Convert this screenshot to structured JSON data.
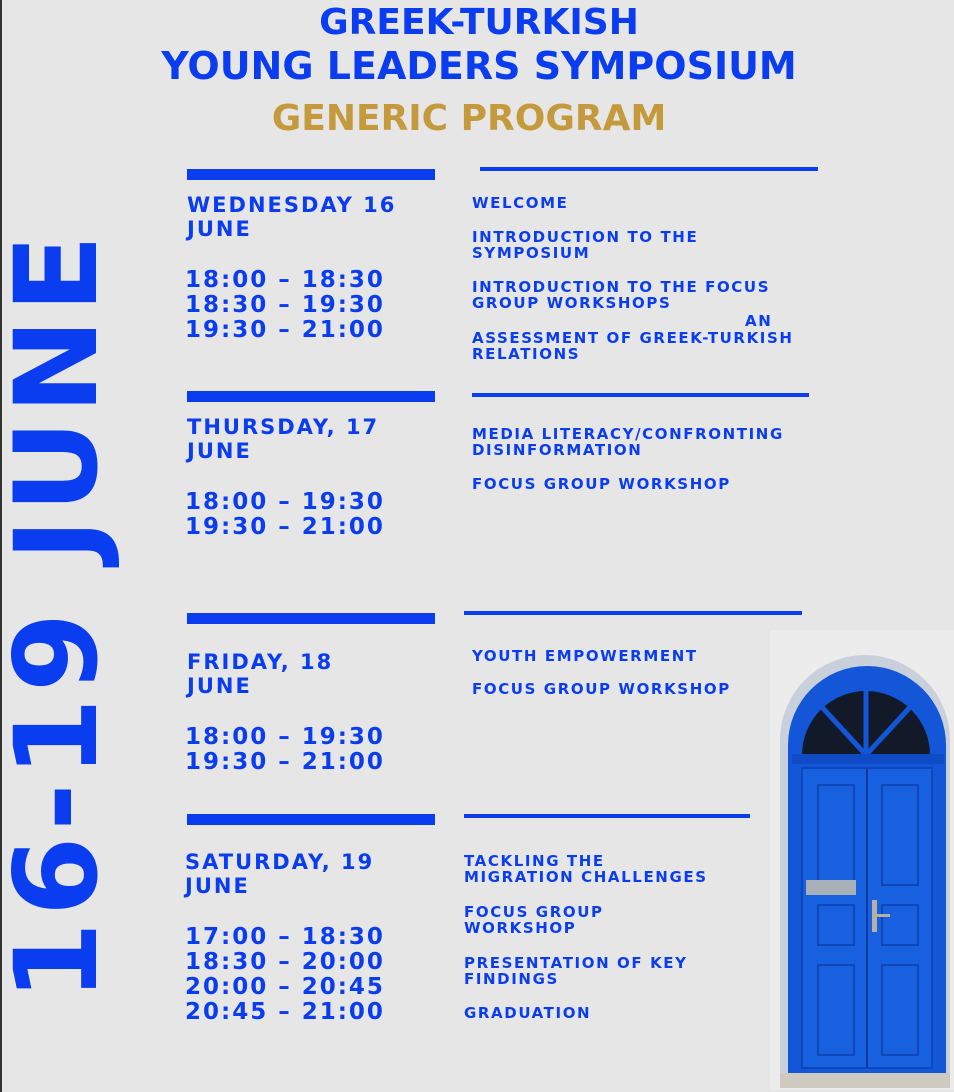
{
  "title": {
    "line1": "GREEK-TURKISH",
    "line2": "YOUNG LEADERS SYMPOSIUM",
    "line3": "GENERIC PROGRAM"
  },
  "side_date": "16-19 JUNE",
  "colors": {
    "blue": "#0a3cf0",
    "gold": "#c49a3c",
    "background": "#e6e6e6"
  },
  "days": [
    {
      "heading": "WEDNESDAY 16\nJUNE",
      "times": [
        "18:00 – 18:30",
        "18:30 – 19:30",
        "19:30 – 21:00"
      ],
      "activities": [
        "WELCOME",
        "INTRODUCTION TO THE\nSYMPOSIUM",
        "INTRODUCTION TO THE FOCUS\nGROUP WORKSHOPS",
        "AN",
        "ASSESSMENT OF GREEK-TURKISH\nRELATIONS"
      ]
    },
    {
      "heading": "THURSDAY, 17\nJUNE",
      "times": [
        "18:00 – 19:30",
        "19:30 – 21:00"
      ],
      "activities": [
        "MEDIA LITERACY/CONFRONTING\nDISINFORMATION",
        "FOCUS GROUP WORKSHOP"
      ]
    },
    {
      "heading": "FRIDAY, 18\nJUNE",
      "times": [
        "18:00 – 19:30",
        "19:30 – 21:00"
      ],
      "activities": [
        "YOUTH EMPOWERMENT",
        "FOCUS GROUP WORKSHOP"
      ]
    },
    {
      "heading": "SATURDAY, 19\nJUNE",
      "times": [
        "17:00 – 18:30",
        "18:30 – 20:00",
        "20:00 – 20:45",
        "20:45 – 21:00"
      ],
      "activities": [
        "TACKLING THE\nMIGRATION CHALLENGES",
        "FOCUS GROUP\nWORKSHOP",
        "PRESENTATION OF KEY\nFINDINGS",
        "GRADUATION"
      ]
    }
  ],
  "image": {
    "icon": "blue-door-photo"
  }
}
